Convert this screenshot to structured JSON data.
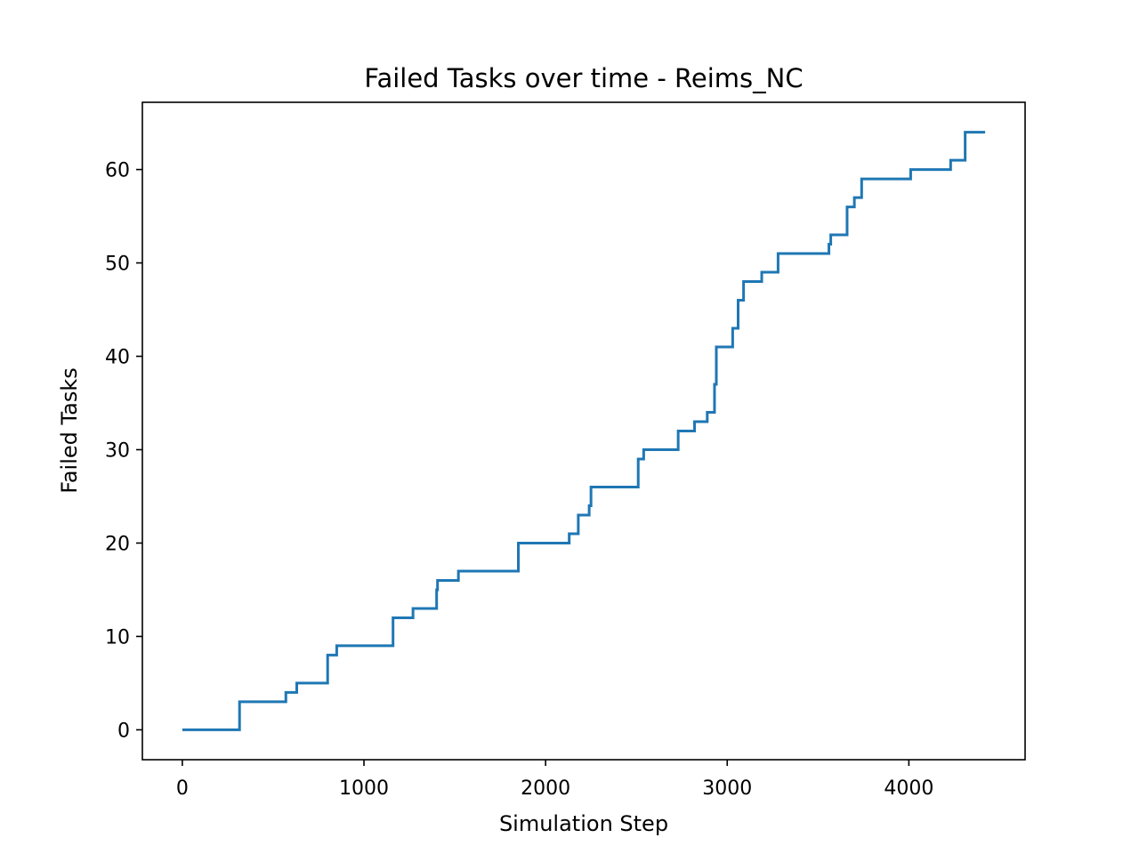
{
  "chart_data": {
    "type": "line",
    "title": "Failed Tasks over time - Reims_NC",
    "xlabel": "Simulation Step",
    "ylabel": "Failed Tasks",
    "xlim": [
      -220,
      4640
    ],
    "ylim": [
      -3.2,
      67.2
    ],
    "xticks": [
      0,
      1000,
      2000,
      3000,
      4000
    ],
    "yticks": [
      0,
      10,
      20,
      30,
      40,
      50,
      60
    ],
    "xtick_labels": [
      "0",
      "1000",
      "2000",
      "3000",
      "4000"
    ],
    "ytick_labels": [
      "0",
      "10",
      "20",
      "30",
      "40",
      "50",
      "60"
    ],
    "grid": false,
    "legend": null,
    "line_style": "steps-post",
    "series": [
      {
        "color": "#1f77b4",
        "x": [
          0,
          315,
          570,
          630,
          800,
          850,
          1160,
          1270,
          1400,
          1405,
          1520,
          1850,
          2130,
          2180,
          2240,
          2250,
          2510,
          2540,
          2730,
          2820,
          2890,
          2930,
          2940,
          3030,
          3060,
          3090,
          3190,
          3280,
          3560,
          3570,
          3660,
          3700,
          3740,
          4010,
          4230,
          4310,
          4420
        ],
        "y": [
          0,
          3,
          4,
          5,
          8,
          9,
          12,
          13,
          15,
          16,
          17,
          20,
          21,
          23,
          24,
          26,
          29,
          30,
          32,
          33,
          34,
          37,
          41,
          43,
          46,
          48,
          49,
          51,
          52,
          53,
          56,
          57,
          59,
          60,
          61,
          64,
          64
        ]
      }
    ]
  }
}
